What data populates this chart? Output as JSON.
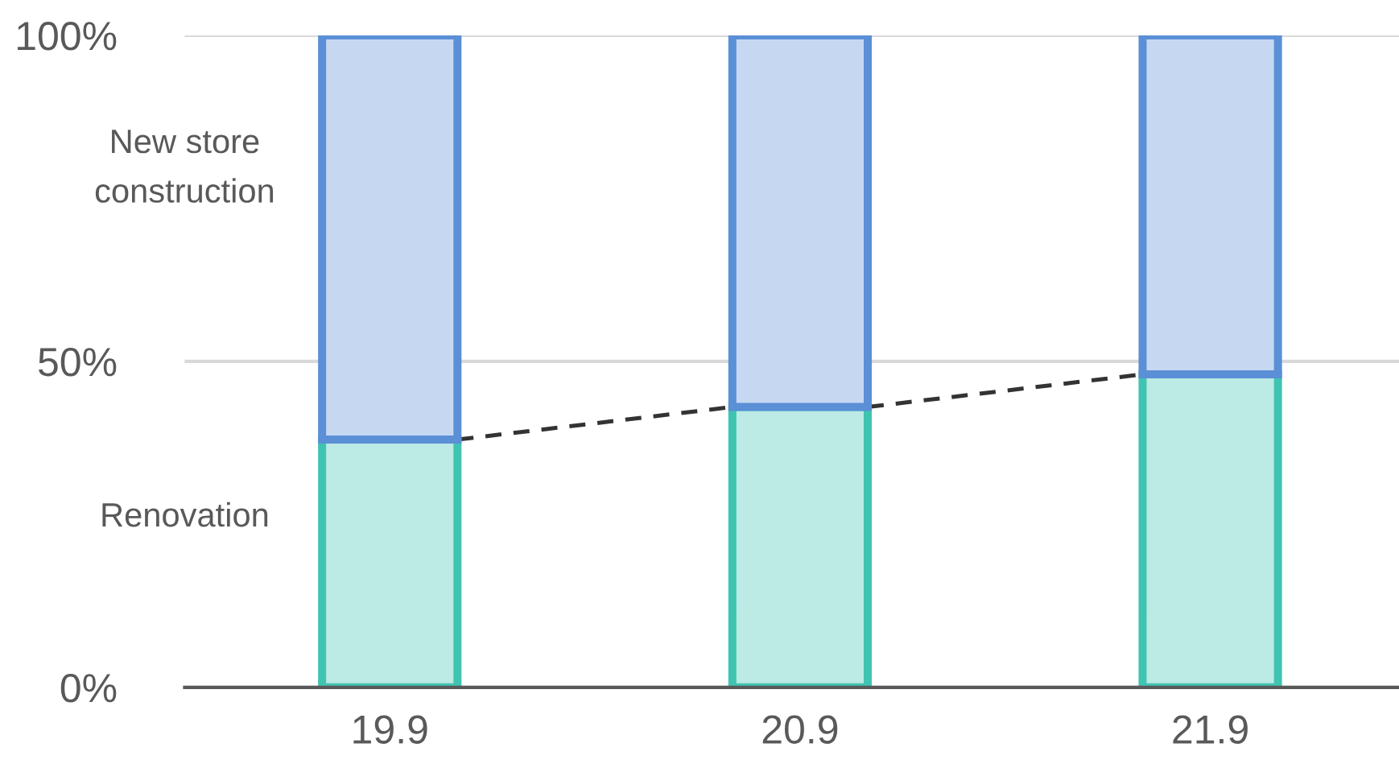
{
  "chart_data": {
    "type": "bar",
    "stacked": true,
    "categories": [
      "19.9",
      "20.9",
      "21.9"
    ],
    "series": [
      {
        "name": "Renovation",
        "color": "#40c4b2",
        "values": [
          38,
          43,
          48
        ]
      },
      {
        "name": "New store construction",
        "color": "#5b8fd6",
        "values": [
          62,
          57,
          52
        ]
      }
    ],
    "line_style": "dashed",
    "ylim": [
      0,
      100
    ],
    "yticks": [
      {
        "value": 0,
        "label": "0%"
      },
      {
        "value": 50,
        "label": "50%"
      },
      {
        "value": 100,
        "label": "100%"
      }
    ],
    "grid": "y",
    "legend": false
  }
}
